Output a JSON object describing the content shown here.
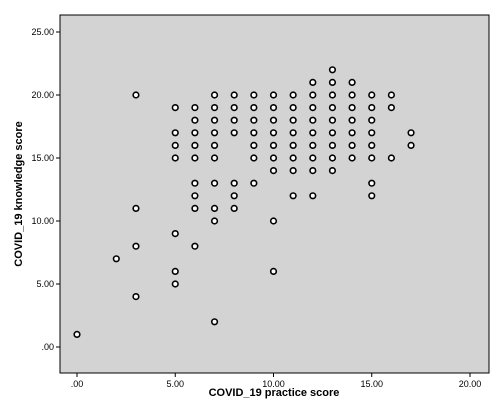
{
  "chart_data": {
    "type": "scatter",
    "xlabel": "COVID_19 practice score",
    "ylabel": "COVID_19 knowledge score",
    "xlim": [
      0,
      20
    ],
    "ylim": [
      0,
      25
    ],
    "x_ticks": [
      ".00",
      "5.00",
      "10.00",
      "15.00",
      "20.00"
    ],
    "y_ticks": [
      ".00",
      "5.00",
      "10.00",
      "15.00",
      "20.00",
      "25.00"
    ],
    "grid": false,
    "legend": "none",
    "colors": {
      "plot_background": "#d3d3d3",
      "marker_stroke": "#000000",
      "marker_fill": "#ffffff"
    },
    "points": [
      {
        "x": 0,
        "y": 1
      },
      {
        "x": 2,
        "y": 7
      },
      {
        "x": 3,
        "y": 20
      },
      {
        "x": 3,
        "y": 11
      },
      {
        "x": 3,
        "y": 8
      },
      {
        "x": 3,
        "y": 4
      },
      {
        "x": 5,
        "y": 19
      },
      {
        "x": 5,
        "y": 17
      },
      {
        "x": 5,
        "y": 16
      },
      {
        "x": 5,
        "y": 15
      },
      {
        "x": 5,
        "y": 9
      },
      {
        "x": 5,
        "y": 6
      },
      {
        "x": 5,
        "y": 5
      },
      {
        "x": 6,
        "y": 19
      },
      {
        "x": 6,
        "y": 18
      },
      {
        "x": 6,
        "y": 17
      },
      {
        "x": 6,
        "y": 16
      },
      {
        "x": 6,
        "y": 15
      },
      {
        "x": 6,
        "y": 13
      },
      {
        "x": 6,
        "y": 12
      },
      {
        "x": 6,
        "y": 11
      },
      {
        "x": 6,
        "y": 8
      },
      {
        "x": 7,
        "y": 20
      },
      {
        "x": 7,
        "y": 19
      },
      {
        "x": 7,
        "y": 18
      },
      {
        "x": 7,
        "y": 17
      },
      {
        "x": 7,
        "y": 16
      },
      {
        "x": 7,
        "y": 15
      },
      {
        "x": 7,
        "y": 13
      },
      {
        "x": 7,
        "y": 11
      },
      {
        "x": 7,
        "y": 10
      },
      {
        "x": 7,
        "y": 2
      },
      {
        "x": 8,
        "y": 20
      },
      {
        "x": 8,
        "y": 19
      },
      {
        "x": 8,
        "y": 18
      },
      {
        "x": 8,
        "y": 17
      },
      {
        "x": 8,
        "y": 13
      },
      {
        "x": 8,
        "y": 12
      },
      {
        "x": 8,
        "y": 11
      },
      {
        "x": 9,
        "y": 20
      },
      {
        "x": 9,
        "y": 19
      },
      {
        "x": 9,
        "y": 18
      },
      {
        "x": 9,
        "y": 17
      },
      {
        "x": 9,
        "y": 16
      },
      {
        "x": 9,
        "y": 15
      },
      {
        "x": 9,
        "y": 13
      },
      {
        "x": 10,
        "y": 20
      },
      {
        "x": 10,
        "y": 19
      },
      {
        "x": 10,
        "y": 18
      },
      {
        "x": 10,
        "y": 17
      },
      {
        "x": 10,
        "y": 16
      },
      {
        "x": 10,
        "y": 15
      },
      {
        "x": 10,
        "y": 14
      },
      {
        "x": 10,
        "y": 10
      },
      {
        "x": 10,
        "y": 6
      },
      {
        "x": 11,
        "y": 20
      },
      {
        "x": 11,
        "y": 19
      },
      {
        "x": 11,
        "y": 18
      },
      {
        "x": 11,
        "y": 17
      },
      {
        "x": 11,
        "y": 16
      },
      {
        "x": 11,
        "y": 15
      },
      {
        "x": 11,
        "y": 14
      },
      {
        "x": 11,
        "y": 12
      },
      {
        "x": 12,
        "y": 21
      },
      {
        "x": 12,
        "y": 20
      },
      {
        "x": 12,
        "y": 19
      },
      {
        "x": 12,
        "y": 18
      },
      {
        "x": 12,
        "y": 17
      },
      {
        "x": 12,
        "y": 16
      },
      {
        "x": 12,
        "y": 15
      },
      {
        "x": 12,
        "y": 14
      },
      {
        "x": 12,
        "y": 12
      },
      {
        "x": 13,
        "y": 22
      },
      {
        "x": 13,
        "y": 21
      },
      {
        "x": 13,
        "y": 20
      },
      {
        "x": 13,
        "y": 19
      },
      {
        "x": 13,
        "y": 18
      },
      {
        "x": 13,
        "y": 17
      },
      {
        "x": 13,
        "y": 16
      },
      {
        "x": 13,
        "y": 15
      },
      {
        "x": 13,
        "y": 14
      },
      {
        "x": 14,
        "y": 21
      },
      {
        "x": 14,
        "y": 20
      },
      {
        "x": 14,
        "y": 19
      },
      {
        "x": 14,
        "y": 18
      },
      {
        "x": 14,
        "y": 17
      },
      {
        "x": 14,
        "y": 16
      },
      {
        "x": 14,
        "y": 15
      },
      {
        "x": 15,
        "y": 20
      },
      {
        "x": 15,
        "y": 19
      },
      {
        "x": 15,
        "y": 18
      },
      {
        "x": 15,
        "y": 17
      },
      {
        "x": 15,
        "y": 16
      },
      {
        "x": 15,
        "y": 15
      },
      {
        "x": 15,
        "y": 13
      },
      {
        "x": 15,
        "y": 12
      },
      {
        "x": 16,
        "y": 20
      },
      {
        "x": 16,
        "y": 19
      },
      {
        "x": 16,
        "y": 15
      },
      {
        "x": 17,
        "y": 17
      },
      {
        "x": 17,
        "y": 16
      }
    ]
  }
}
